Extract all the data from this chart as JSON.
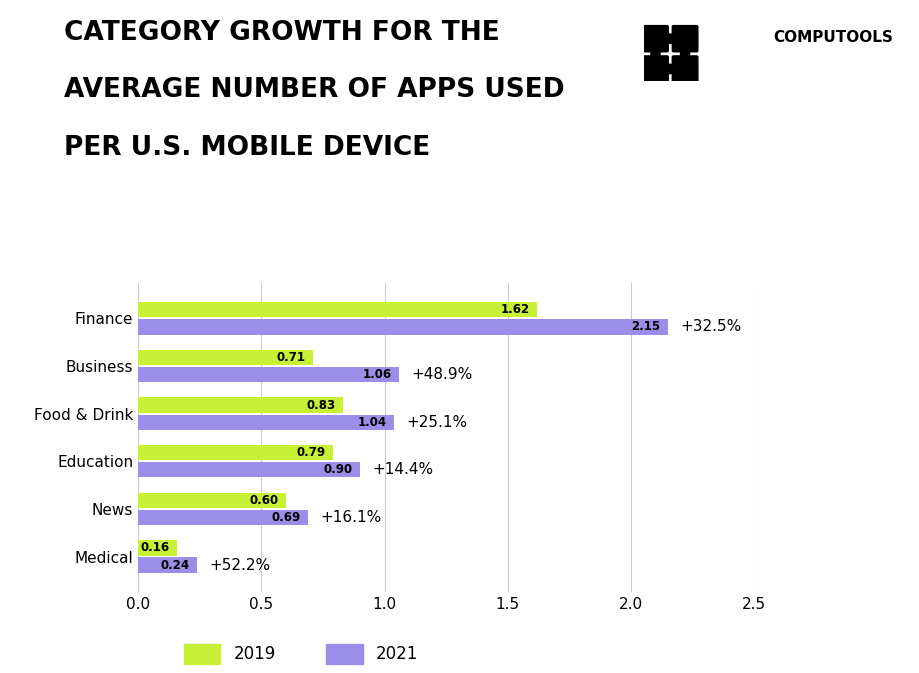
{
  "title_line1": "CATEGORY GROWTH FOR THE",
  "title_line2": "AVERAGE NUMBER OF APPS USED",
  "title_line3": "PER U.S. MOBILE DEVICE",
  "categories": [
    "Finance",
    "Business",
    "Food & Drink",
    "Education",
    "News",
    "Medical"
  ],
  "values_2019": [
    1.62,
    0.71,
    0.83,
    0.79,
    0.6,
    0.16
  ],
  "values_2021": [
    2.15,
    1.06,
    1.04,
    0.9,
    0.69,
    0.24
  ],
  "growth_labels": [
    "+32.5%",
    "+48.9%",
    "+25.1%",
    "+14.4%",
    "+16.1%",
    "+52.2%"
  ],
  "color_2019": "#c8f035",
  "color_2021": "#9b8ee8",
  "xlim": [
    0,
    2.5
  ],
  "xticks": [
    0.0,
    0.5,
    1.0,
    1.5,
    2.0,
    2.5
  ],
  "background_color": "#ffffff",
  "bar_height": 0.32,
  "bar_gap": 0.04,
  "title_fontsize": 19,
  "label_fontsize": 11,
  "tick_fontsize": 11,
  "value_fontsize": 8.5,
  "growth_fontsize": 11,
  "legend_fontsize": 12,
  "computools_fontsize": 11
}
